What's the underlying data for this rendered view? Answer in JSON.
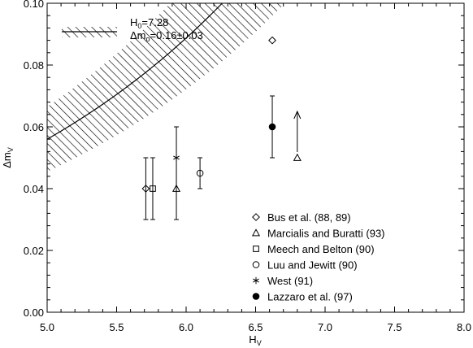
{
  "chart_data": {
    "type": "scatter",
    "title": "",
    "xlabel": "H",
    "xlabel_sub": "V",
    "ylabel": "Δm",
    "ylabel_sub": "V",
    "xlim": [
      5.0,
      8.0
    ],
    "ylim": [
      0.0,
      0.1
    ],
    "x_ticks": [
      "5.0",
      "5.5",
      "6.0",
      "6.5",
      "7.0",
      "7.5",
      "8.0"
    ],
    "y_ticks": [
      "0.00",
      "0.02",
      "0.04",
      "0.06",
      "0.08",
      "0.10"
    ],
    "x_tick_values": [
      5.0,
      5.5,
      6.0,
      6.5,
      7.0,
      7.5,
      8.0
    ],
    "y_tick_values": [
      0.0,
      0.02,
      0.04,
      0.06,
      0.08,
      0.1
    ],
    "grid": false,
    "fit_annotation": {
      "line1_main": "H",
      "line1_sub": "0",
      "line1_rest": "=7.28",
      "line2_main": "Δm",
      "line2_sub": "o",
      "line2_rest": "=0.16±0.03"
    },
    "fit_curve": {
      "h0": 7.28,
      "dm0": 0.16,
      "uncertainty": 0.03
    },
    "series": [
      {
        "name": "Bus et al. (88, 89)",
        "marker": "diamond",
        "points": [
          {
            "x": 5.71,
            "y": 0.04,
            "ylow": 0.03,
            "yhigh": 0.05
          },
          {
            "x": 6.62,
            "y": 0.088
          }
        ]
      },
      {
        "name": "Marcialis and Buratti (93)",
        "marker": "triangle",
        "points": [
          {
            "x": 5.93,
            "y": 0.04
          },
          {
            "x": 6.8,
            "y": 0.05,
            "lower_limit": true,
            "arrow_to": 0.065
          }
        ]
      },
      {
        "name": "Meech and Belton (90)",
        "marker": "square",
        "points": [
          {
            "x": 5.76,
            "y": 0.04,
            "ylow": 0.03,
            "yhigh": 0.05
          }
        ]
      },
      {
        "name": "Luu and Jewitt (90)",
        "marker": "circle",
        "points": [
          {
            "x": 6.1,
            "y": 0.045,
            "ylow": 0.04,
            "yhigh": 0.05
          }
        ]
      },
      {
        "name": "West (91)",
        "marker": "asterisk",
        "points": [
          {
            "x": 5.93,
            "y": 0.05,
            "ylow": 0.03,
            "yhigh": 0.06
          }
        ]
      },
      {
        "name": "Lazzaro et al. (97)",
        "marker": "filled-circle",
        "points": [
          {
            "x": 6.62,
            "y": 0.06,
            "ylow": 0.05,
            "yhigh": 0.07
          }
        ]
      }
    ]
  }
}
